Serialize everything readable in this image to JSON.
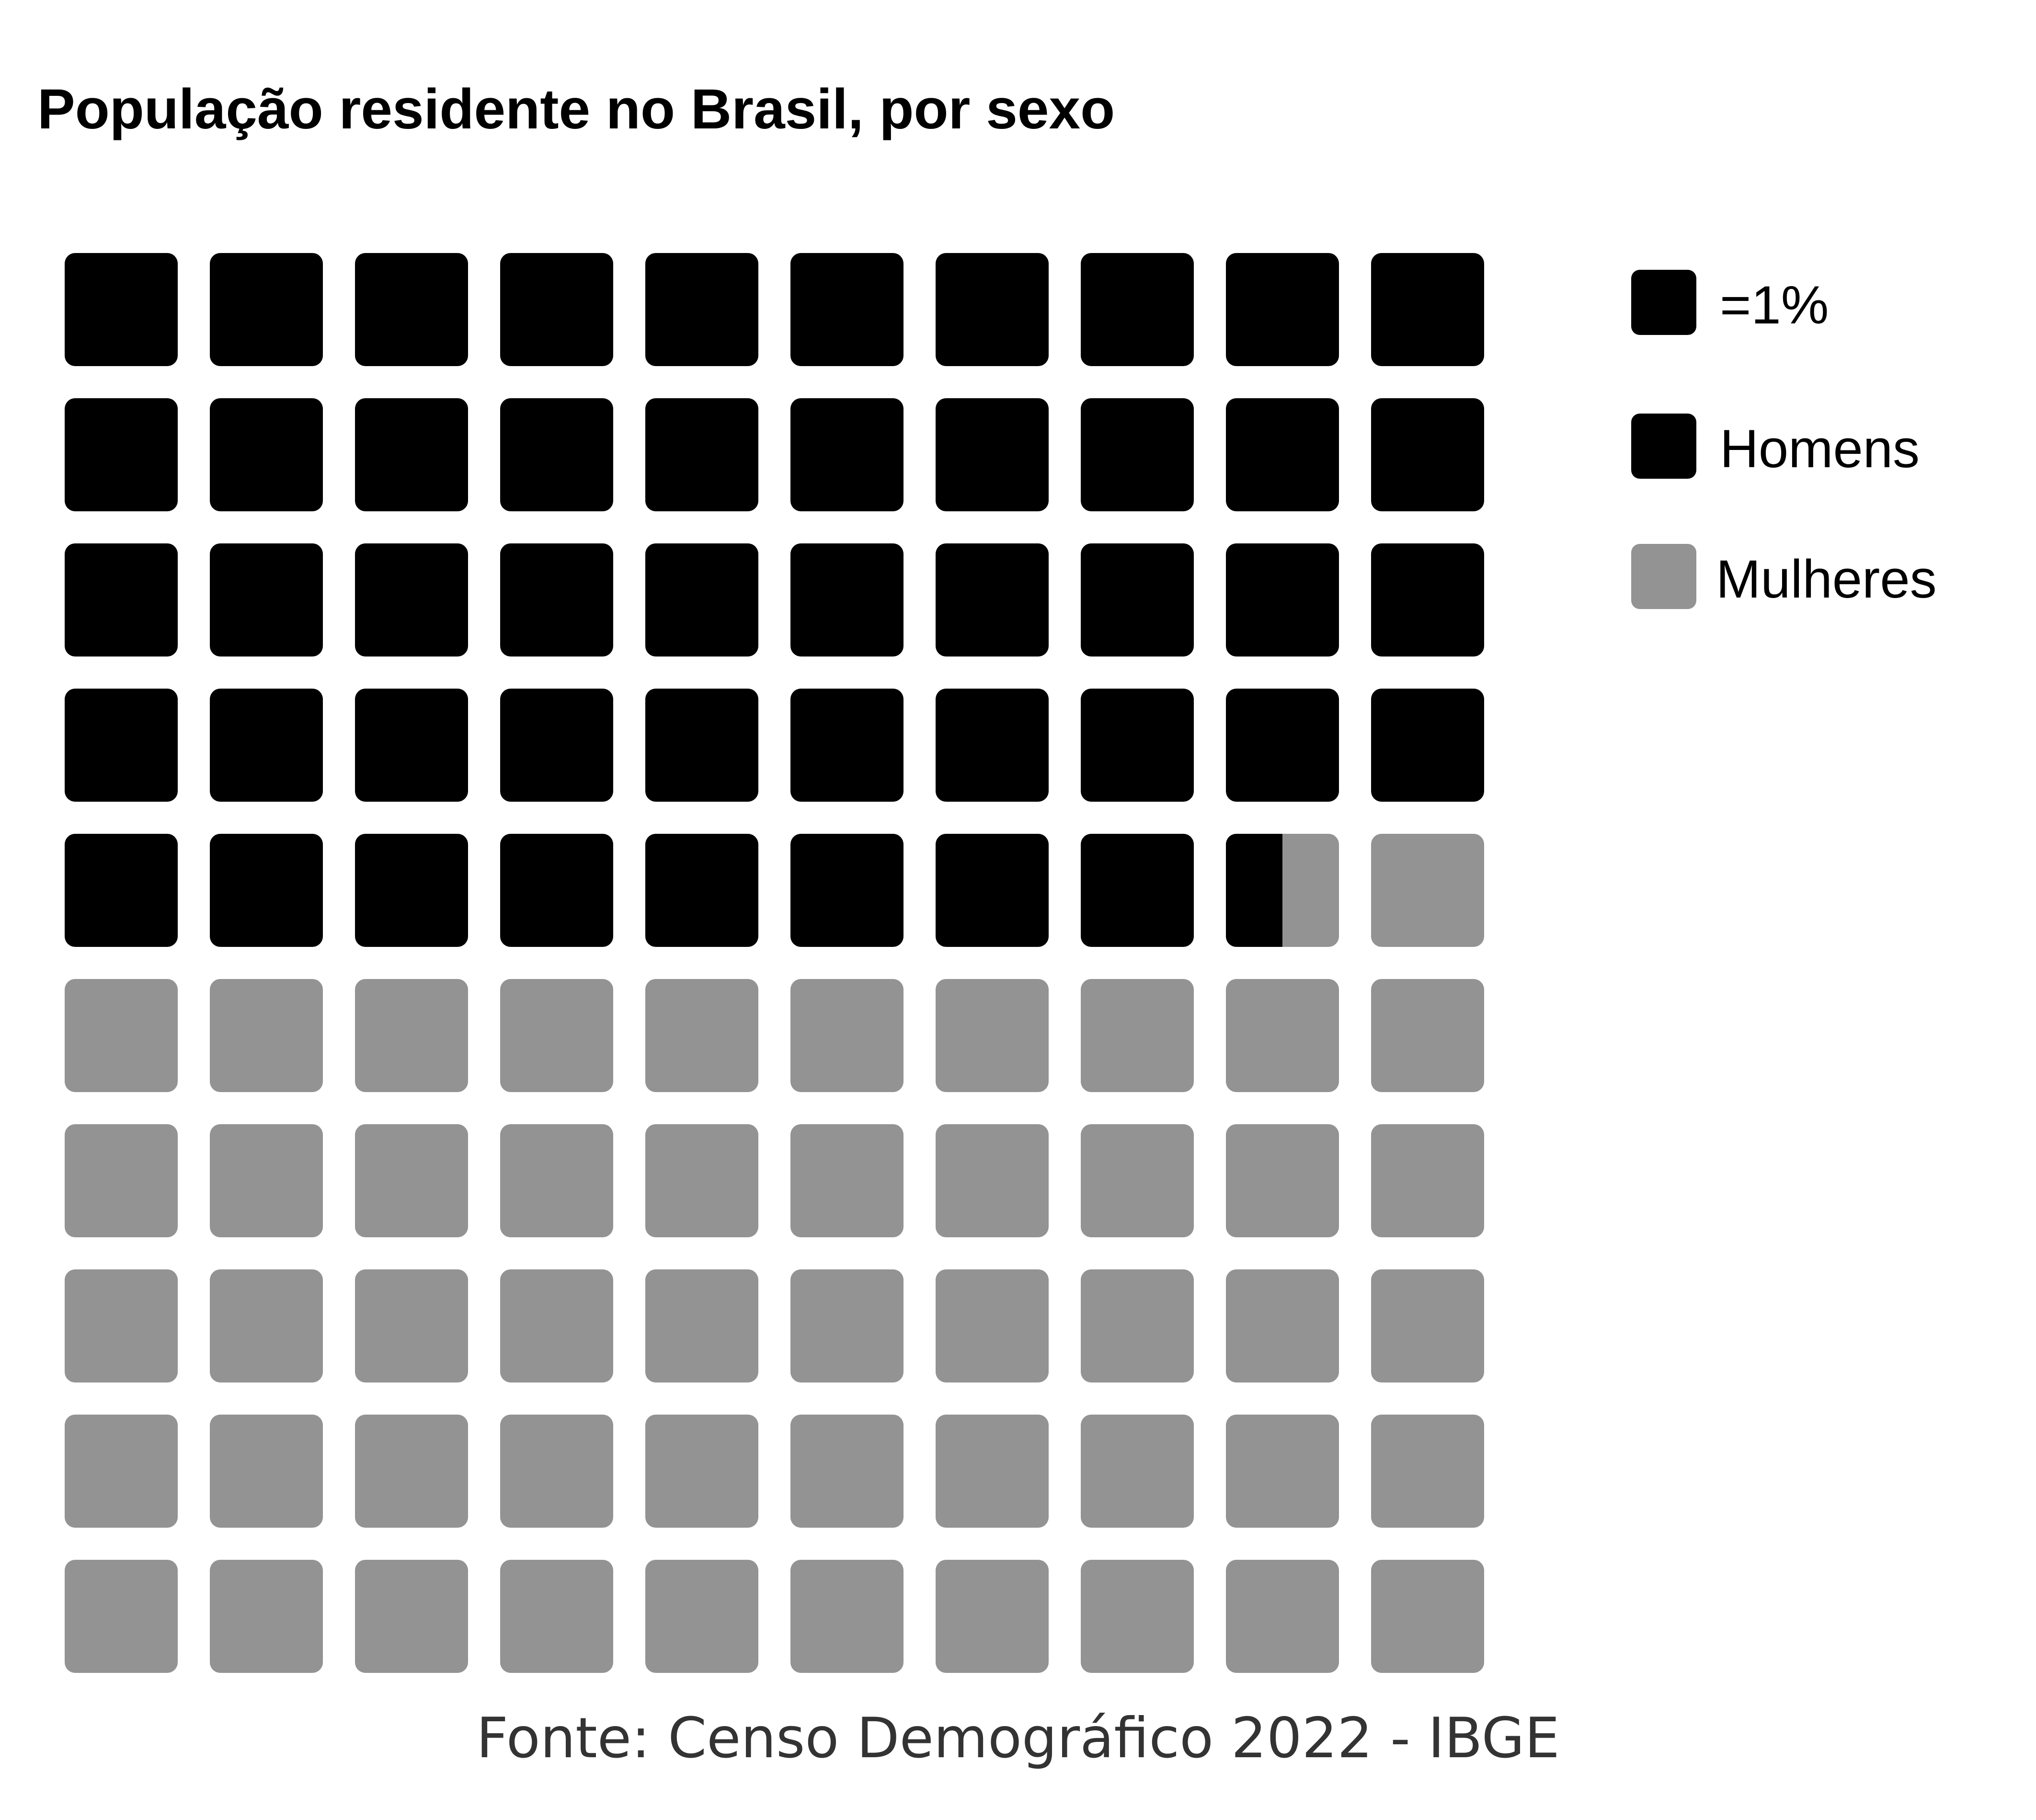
{
  "chart_data": {
    "type": "waffle",
    "title": "População residente no Brasil, por sexo",
    "unit_label": "=1%",
    "grid": {
      "rows": 10,
      "cols": 10
    },
    "series": [
      {
        "name": "Homens",
        "value": 48.5,
        "color": "#000000"
      },
      {
        "name": "Mulheres",
        "value": 51.5,
        "color": "#939393"
      }
    ],
    "legend_position": "right",
    "source": "Fonte: Censo Demográfico 2022 - IBGE"
  }
}
